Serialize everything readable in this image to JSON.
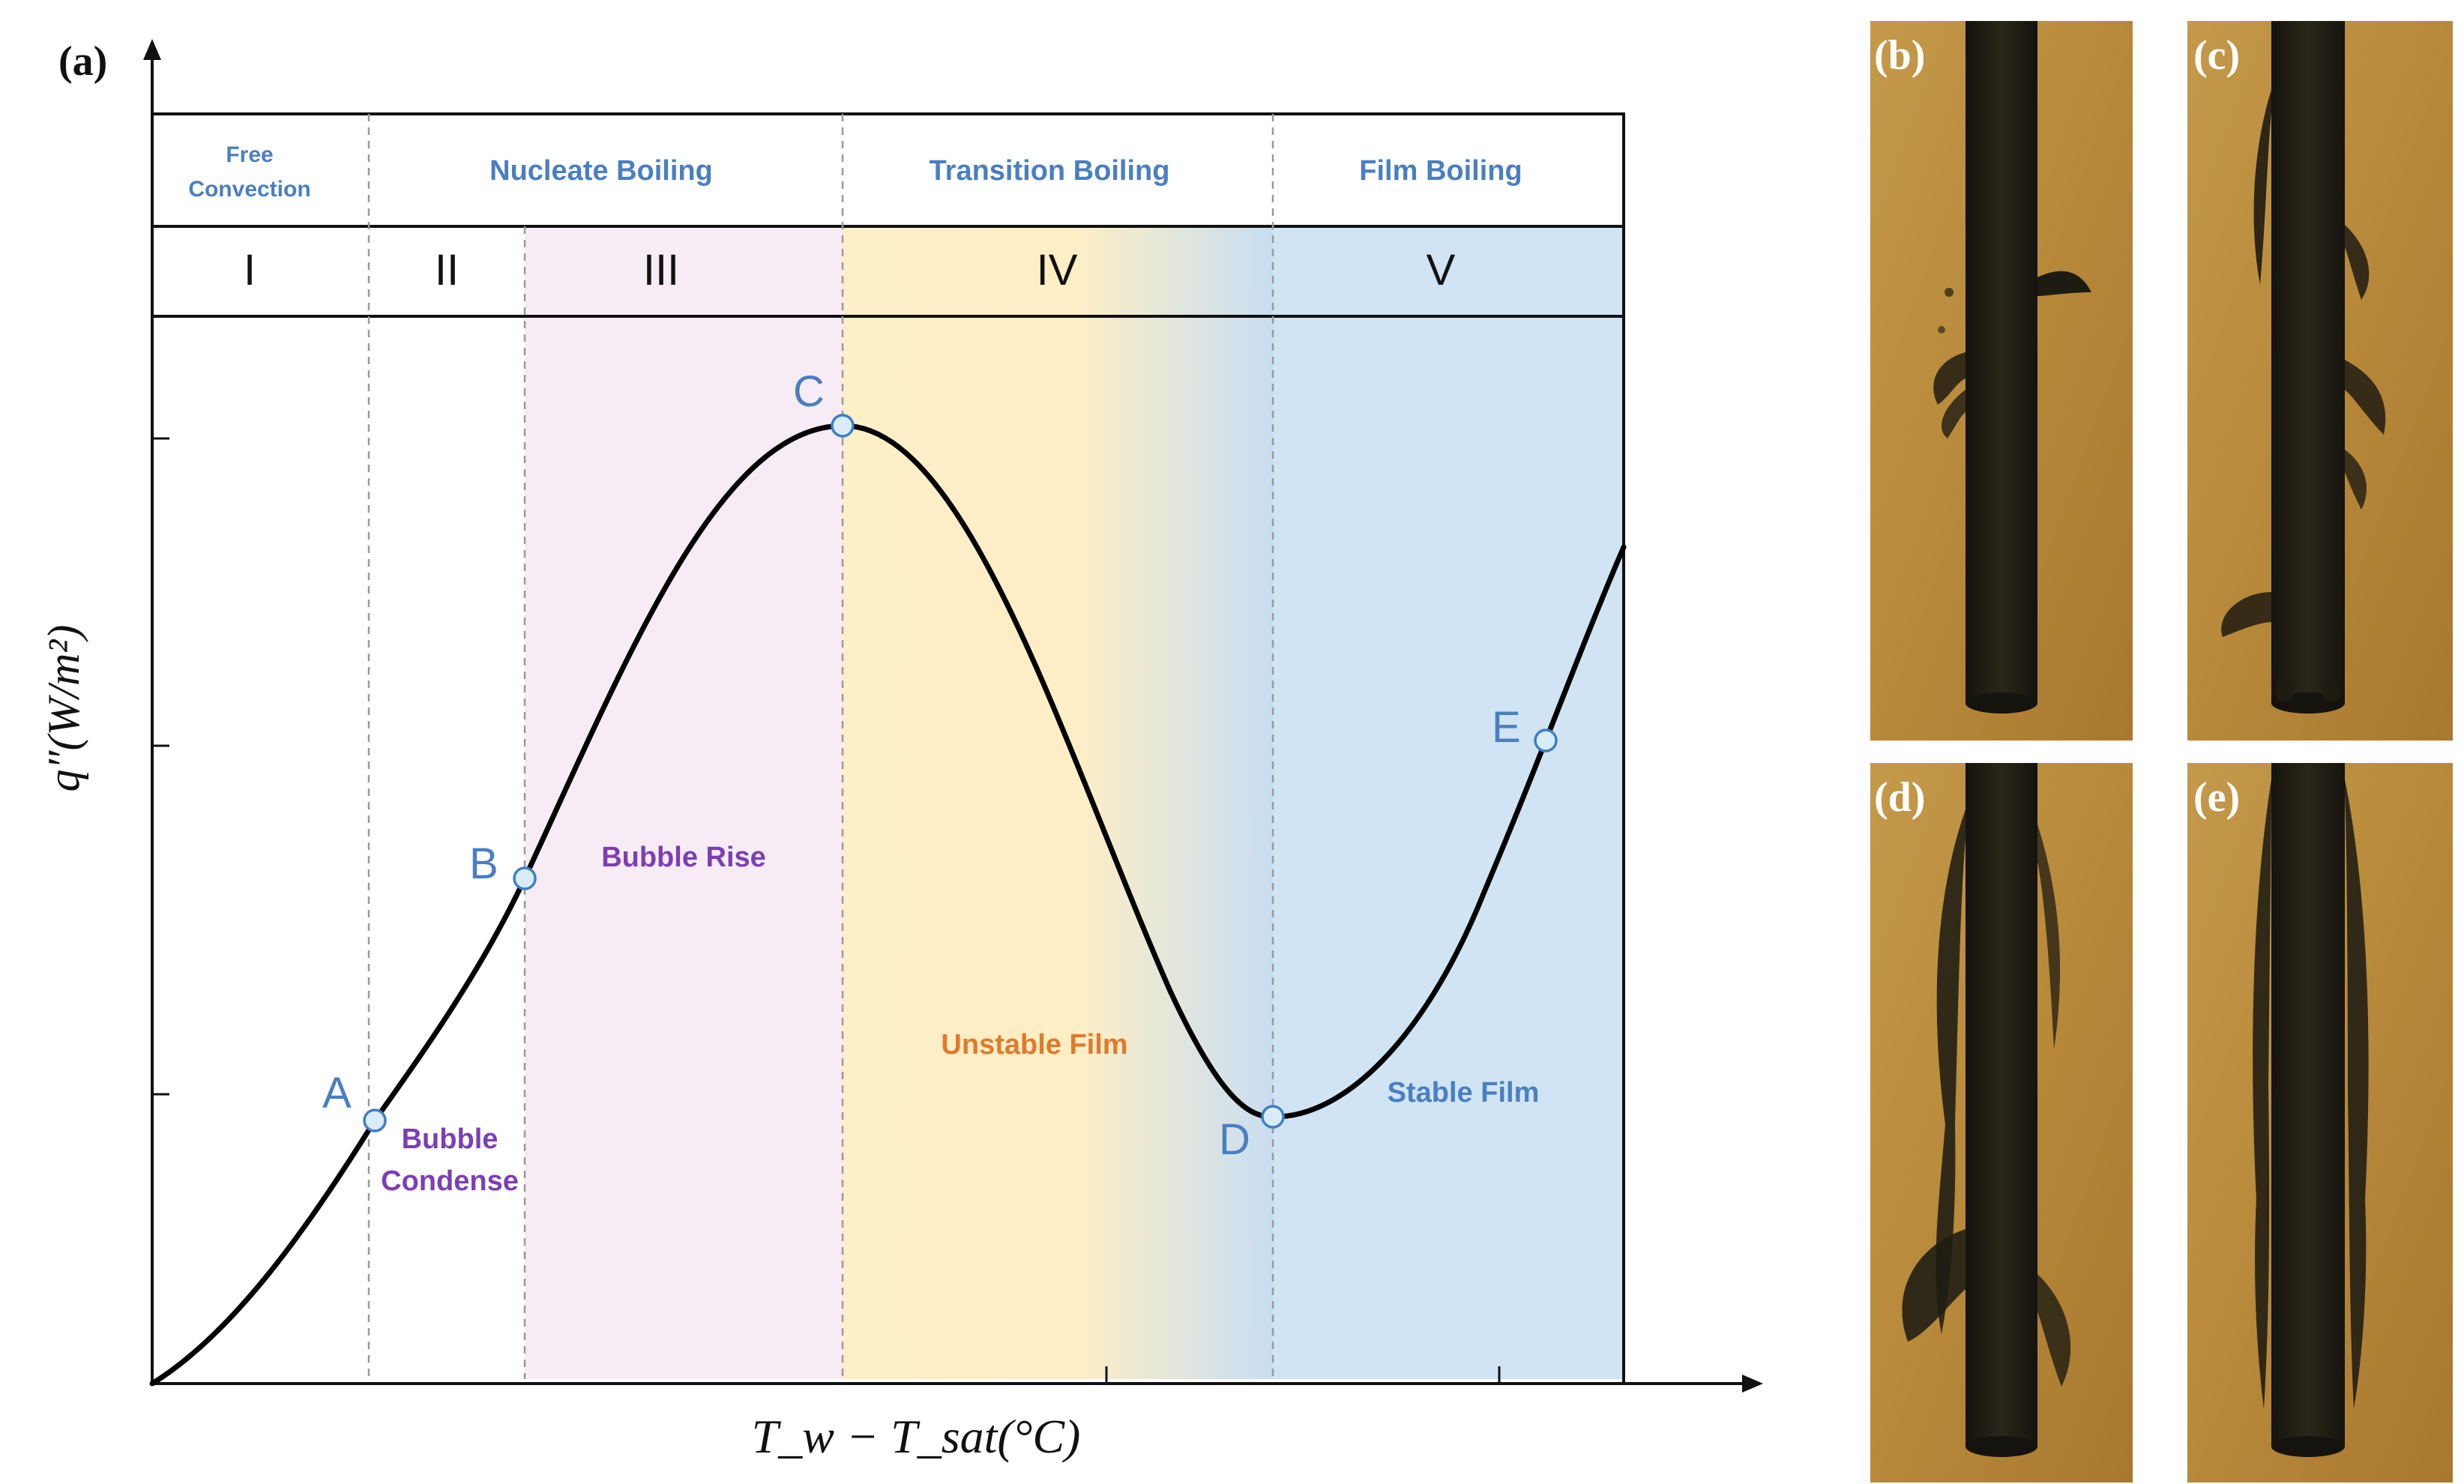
{
  "panel_labels": {
    "a": "(a)",
    "b": "(b)",
    "c": "(c)",
    "d": "(d)",
    "e": "(e)"
  },
  "regimes": {
    "free_convection_line1": "Free",
    "free_convection_line2": "Convection",
    "nucleate": "Nucleate Boiling",
    "transition": "Transition Boiling",
    "film": "Film Boiling"
  },
  "zones": [
    "I",
    "II",
    "III",
    "IV",
    "V"
  ],
  "points": {
    "A": "A",
    "B": "B",
    "C": "C",
    "D": "D",
    "E": "E"
  },
  "annotations": {
    "bubble": "Bubble",
    "condense": "Condense",
    "bubble_rise": "Bubble Rise",
    "unstable_film": "Unstable Film",
    "stable_film": "Stable Film"
  },
  "axes": {
    "x_label": "T_w − T_sat(°C)",
    "y_label": "q″(W/m²)"
  },
  "colors": {
    "curve": "#000000",
    "point_fill": "#d8ecfa",
    "point_stroke": "#3f7fc3",
    "point_letter": "#4a7fc1",
    "regime_text": "#4a7fc1",
    "purple_text": "#7b3fb3",
    "orange_text": "#e07a2a",
    "zone3_bg": "#f7ecf6",
    "zone4_bg": "#fdefc8",
    "zone5_bg": "#d0e4f4",
    "photo_bg": "#b88a3a",
    "rod": "#1c1a14"
  }
}
